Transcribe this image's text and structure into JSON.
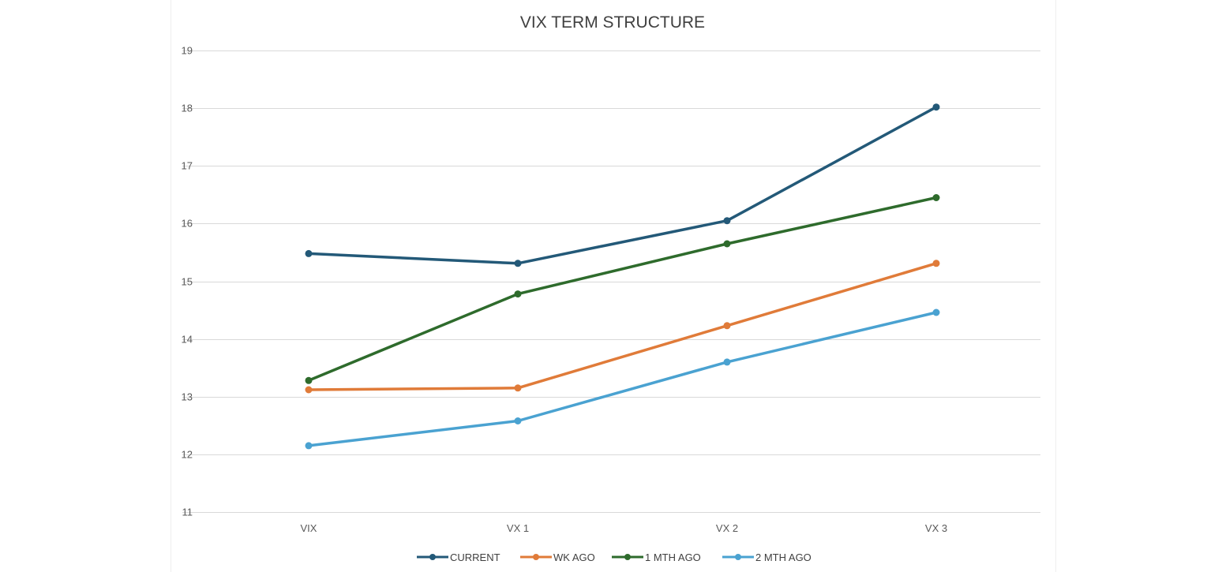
{
  "chart_data": {
    "type": "line",
    "title": "VIX TERM STRUCTURE",
    "xlabel": "",
    "ylabel": "",
    "categories": [
      "VIX",
      "VX 1",
      "VX 2",
      "VX 3"
    ],
    "ylim": [
      11,
      19
    ],
    "yticks": [
      11,
      12,
      13,
      14,
      15,
      16,
      17,
      18,
      19
    ],
    "grid": true,
    "legend_position": "bottom",
    "series": [
      {
        "name": "CURRENT",
        "color": "#235978",
        "values": [
          15.48,
          15.31,
          16.05,
          18.02
        ]
      },
      {
        "name": "WK AGO",
        "color": "#e07b39",
        "values": [
          13.12,
          13.15,
          14.23,
          15.31
        ]
      },
      {
        "name": "1 MTH AGO",
        "color": "#2e6b2c",
        "values": [
          13.28,
          14.78,
          15.65,
          16.45
        ]
      },
      {
        "name": "2 MTH AGO",
        "color": "#4aa2d1",
        "values": [
          12.15,
          12.58,
          13.6,
          14.46
        ]
      }
    ]
  }
}
